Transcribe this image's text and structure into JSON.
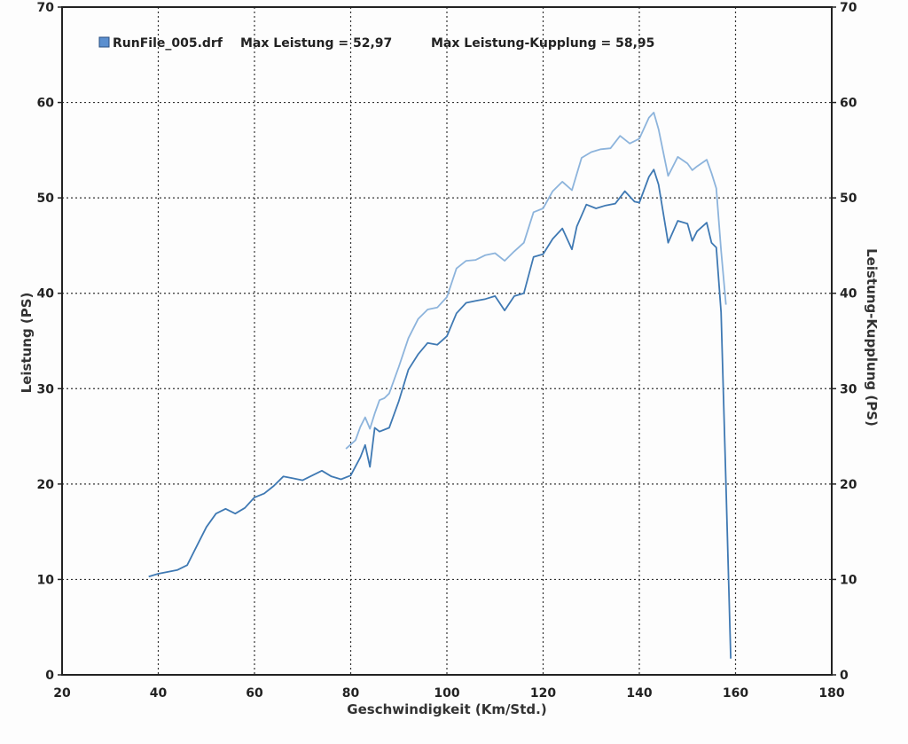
{
  "chart_data": {
    "type": "line",
    "xlabel": "Geschwindigkeit (Km/Std.)",
    "ylabel": "Leistung (PS)",
    "y2label": "Leistung-Kupplung (PS)",
    "xlim": [
      20,
      180
    ],
    "ylim": [
      0,
      70
    ],
    "xticks": [
      20,
      40,
      60,
      80,
      100,
      120,
      140,
      160,
      180
    ],
    "yticks": [
      0,
      10,
      20,
      30,
      40,
      50,
      60,
      70
    ],
    "grid": true,
    "legend": {
      "file_label": "RunFile_005.drf",
      "entries": [
        "Max Leistung = 52,97",
        "Max Leistung-Kupplung = 58,95"
      ],
      "position": "top-left"
    },
    "series": [
      {
        "color": "#3f79b3",
        "x": [
          38,
          40,
          44,
          46,
          48,
          50,
          52,
          54,
          56,
          58,
          60,
          62,
          64,
          66,
          68,
          70,
          72,
          74,
          76,
          78,
          80,
          82,
          83,
          84,
          85,
          86,
          87,
          88,
          90,
          92,
          94,
          96,
          98,
          100,
          102,
          104,
          106,
          108,
          110,
          112,
          114,
          116,
          118,
          120,
          122,
          124,
          126,
          127,
          129,
          131,
          133,
          135,
          137,
          139,
          140,
          142,
          143,
          144,
          146,
          148,
          150,
          151,
          152,
          154,
          155,
          156,
          157,
          158,
          159
        ],
        "y": [
          10.3,
          10.6,
          11.0,
          11.5,
          13.5,
          15.5,
          16.9,
          17.4,
          16.9,
          17.5,
          18.6,
          19.0,
          19.8,
          20.8,
          20.6,
          20.4,
          20.9,
          21.4,
          20.8,
          20.5,
          20.9,
          22.8,
          24.1,
          21.8,
          25.9,
          25.5,
          25.7,
          25.9,
          28.7,
          32.0,
          33.6,
          34.8,
          34.6,
          35.5,
          37.9,
          39.0,
          39.2,
          39.4,
          39.7,
          38.2,
          39.7,
          40.0,
          43.8,
          44.1,
          45.7,
          46.8,
          44.6,
          47.0,
          49.3,
          48.9,
          49.2,
          49.4,
          50.7,
          49.6,
          49.5,
          52.2,
          52.97,
          51.4,
          45.3,
          47.6,
          47.3,
          45.5,
          46.5,
          47.4,
          45.3,
          44.8,
          38.0,
          20.0,
          1.7
        ]
      },
      {
        "color": "#8db4dc",
        "x": [
          79,
          81,
          82,
          83,
          84,
          85,
          86,
          87,
          88,
          90,
          92,
          94,
          96,
          98,
          100,
          102,
          104,
          106,
          108,
          110,
          112,
          114,
          116,
          118,
          120,
          122,
          124,
          126,
          128,
          130,
          132,
          134,
          136,
          138,
          140,
          142,
          143,
          144,
          146,
          148,
          150,
          151,
          152,
          154,
          155,
          156,
          157,
          158
        ],
        "y": [
          23.7,
          24.6,
          26.0,
          27.0,
          25.8,
          27.4,
          28.8,
          29.0,
          29.5,
          32.3,
          35.3,
          37.3,
          38.3,
          38.5,
          39.6,
          42.6,
          43.4,
          43.5,
          44.0,
          44.2,
          43.4,
          44.4,
          45.3,
          48.5,
          48.9,
          50.7,
          51.7,
          50.8,
          54.2,
          54.8,
          55.1,
          55.2,
          56.5,
          55.7,
          56.2,
          58.4,
          58.95,
          57.2,
          52.3,
          54.3,
          53.6,
          52.9,
          53.3,
          54.0,
          52.6,
          51.0,
          44.5,
          38.8
        ]
      }
    ]
  }
}
